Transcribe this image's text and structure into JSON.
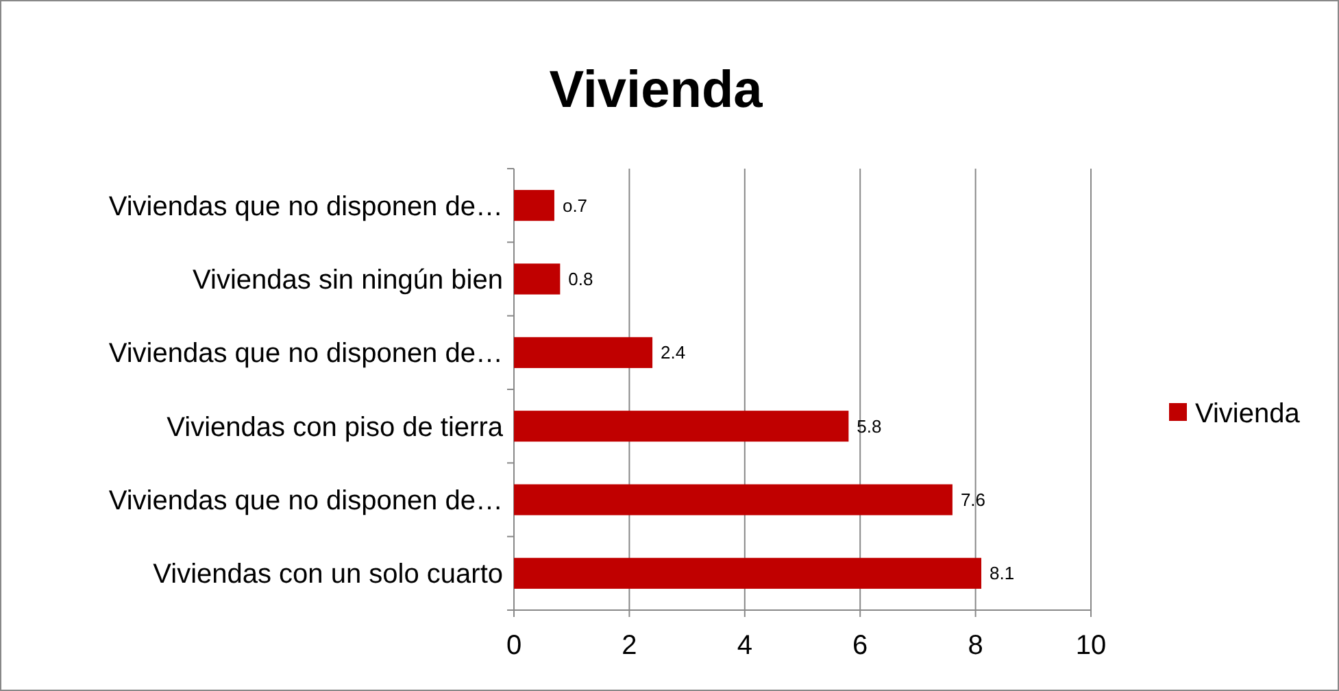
{
  "chart_data": {
    "type": "bar",
    "orientation": "horizontal",
    "title": "Vivienda",
    "categories": [
      "Viviendas que no disponen de…",
      "Viviendas sin ningún bien",
      "Viviendas que no disponen de…",
      "Viviendas con piso de tierra",
      "Viviendas que no disponen de…",
      "Viviendas con un solo cuarto"
    ],
    "series": [
      {
        "name": "Vivienda",
        "color": "#c00000",
        "values": [
          0.7,
          0.8,
          2.4,
          5.8,
          7.6,
          8.1
        ],
        "value_labels": [
          "o.7",
          "0.8",
          "2.4",
          "5.8",
          "7.6",
          "8.1"
        ]
      }
    ],
    "xlim": [
      0,
      10
    ],
    "xticks": [
      0,
      2,
      4,
      6,
      8,
      10
    ],
    "grid": "x",
    "legend": "right"
  }
}
